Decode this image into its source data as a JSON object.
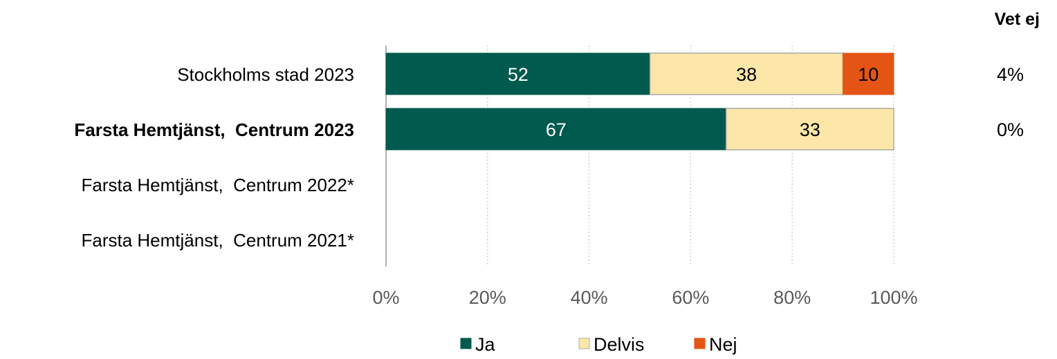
{
  "chart_data": {
    "type": "bar",
    "orientation": "horizontal",
    "stacked": true,
    "categories": [
      "Stockholms stad 2023",
      "Farsta Hemtjänst,  Centrum 2023",
      "Farsta Hemtjänst,  Centrum 2022*",
      "Farsta Hemtjänst,  Centrum 2021*"
    ],
    "highlight_category": "Farsta Hemtjänst,  Centrum 2023",
    "series": [
      {
        "name": "Ja",
        "values": [
          52,
          67,
          null,
          null
        ],
        "labels": [
          "52",
          "67",
          "",
          ""
        ]
      },
      {
        "name": "Delvis",
        "values": [
          38,
          33,
          null,
          null
        ],
        "labels": [
          "38",
          "33",
          "",
          ""
        ]
      },
      {
        "name": "Nej",
        "values": [
          10,
          0,
          null,
          null
        ],
        "labels": [
          "10",
          "",
          "",
          ""
        ]
      }
    ],
    "xlim": [
      0,
      100
    ],
    "x_ticks": [
      "0%",
      "20%",
      "40%",
      "60%",
      "80%",
      "100%"
    ],
    "grid": true,
    "legend_position": "bottom",
    "side_column": {
      "header": "Vet ej",
      "values": [
        "4%",
        "0%",
        "",
        ""
      ]
    },
    "colors": {
      "Ja": "#005a4e",
      "Delvis": "#fde7a8",
      "Nej": "#e45414",
      "grid": "#c9c9c9",
      "axis": "#999999",
      "text": "#000000",
      "tick_text": "#595959"
    }
  }
}
